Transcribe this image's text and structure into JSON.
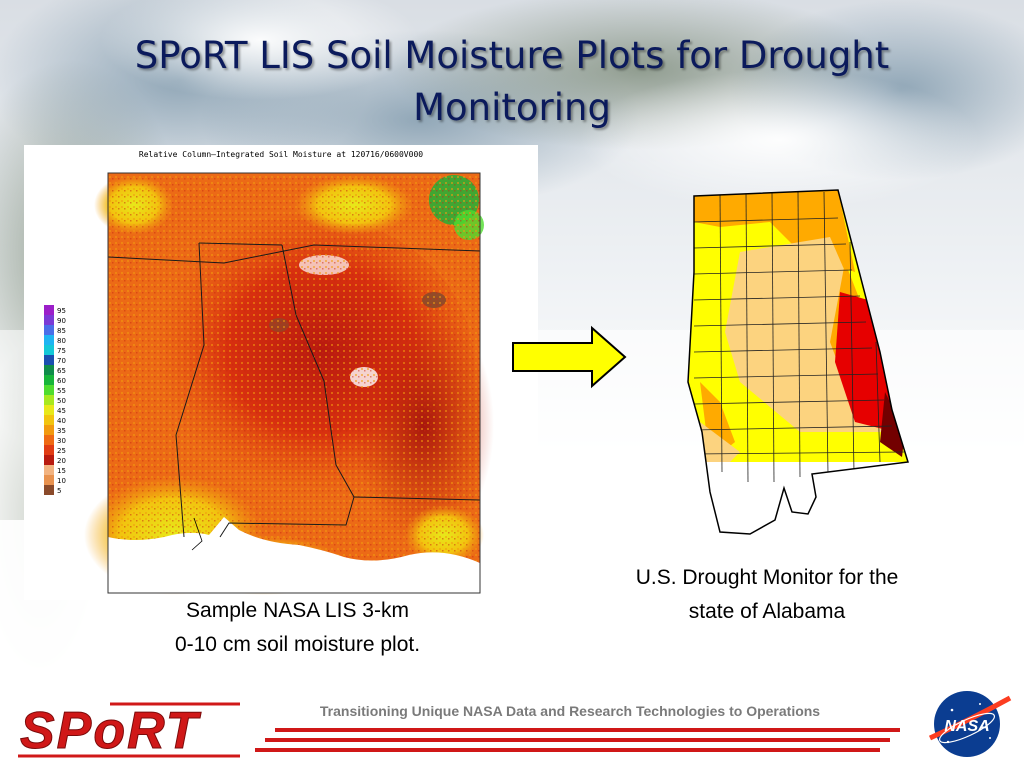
{
  "slide": {
    "title_line1": "SPoRT LIS Soil Moisture Plots for Drought",
    "title_line2": "Monitoring"
  },
  "lis_plot": {
    "title": "Relative Column–Integrated Soil Moisture at 120716/0600V000",
    "legend": [
      {
        "label": "95",
        "color": "#9b1fc9"
      },
      {
        "label": "90",
        "color": "#7a3ad6"
      },
      {
        "label": "85",
        "color": "#4a6ee8"
      },
      {
        "label": "80",
        "color": "#1fb4f2"
      },
      {
        "label": "75",
        "color": "#14c8d8"
      },
      {
        "label": "70",
        "color": "#1a4fb0"
      },
      {
        "label": "65",
        "color": "#0f8c4a"
      },
      {
        "label": "60",
        "color": "#17b53a"
      },
      {
        "label": "55",
        "color": "#4fdc2e"
      },
      {
        "label": "50",
        "color": "#a8e81f"
      },
      {
        "label": "45",
        "color": "#e8e81a"
      },
      {
        "label": "40",
        "color": "#f2c40f"
      },
      {
        "label": "35",
        "color": "#f29a0f"
      },
      {
        "label": "30",
        "color": "#ef6a14"
      },
      {
        "label": "25",
        "color": "#e03c14"
      },
      {
        "label": "20",
        "color": "#b81a0f"
      },
      {
        "label": "15",
        "color": "#f2b380"
      },
      {
        "label": "10",
        "color": "#e8924f"
      },
      {
        "label": "5",
        "color": "#8a4a2a"
      }
    ],
    "caption_line1": "Sample NASA LIS 3-km",
    "caption_line2": "0-10 cm soil moisture plot."
  },
  "drought_map": {
    "caption_line1": "U.S. Drought Monitor for the",
    "caption_line2": "state of Alabama"
  },
  "footer": {
    "logo_text": "SPoRT",
    "tagline": "Transitioning Unique NASA Data and Research Technologies to Operations",
    "nasa_text": "NASA"
  },
  "colors": {
    "title": "#0b1a5c",
    "arrow_fill": "#ffff00",
    "stripe_red": "#d01818",
    "d0_yellow": "#ffff00",
    "d1_tan": "#fcd37f",
    "d2_orange": "#ffaa00",
    "d3_red": "#e60000",
    "d4_darkred": "#730000"
  },
  "icons": [
    "arrow-right-icon",
    "sport-logo",
    "nasa-meatball-logo"
  ]
}
